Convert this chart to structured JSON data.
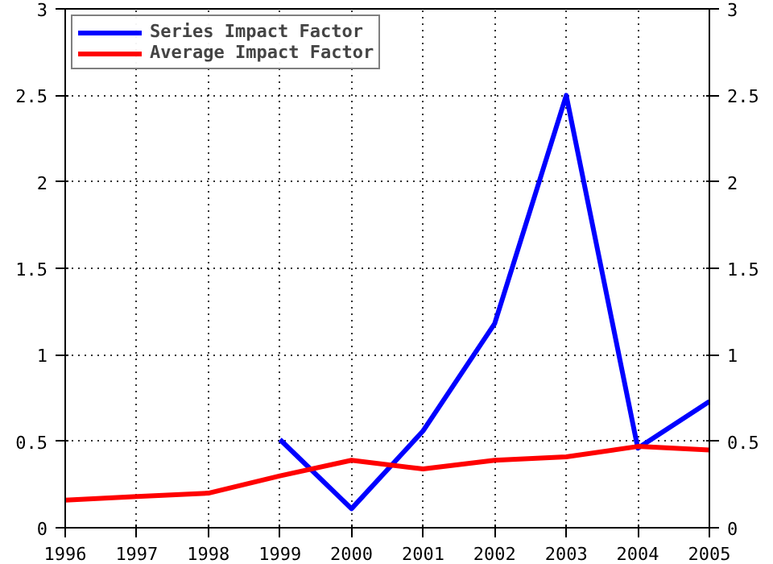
{
  "chart_data": {
    "type": "line",
    "x": [
      1996,
      1997,
      1998,
      1999,
      2000,
      2001,
      2002,
      2003,
      2004,
      2005
    ],
    "series": [
      {
        "name": "Series Impact Factor",
        "color": "#0000ff",
        "values": [
          null,
          null,
          null,
          0.51,
          0.11,
          0.56,
          1.18,
          2.5,
          0.46,
          0.73
        ]
      },
      {
        "name": "Average Impact Factor",
        "color": "#ff0000",
        "values": [
          0.16,
          0.18,
          0.2,
          0.3,
          0.39,
          0.34,
          0.39,
          0.41,
          0.47,
          0.45
        ]
      }
    ],
    "xlim": [
      1996,
      2005
    ],
    "xticks": [
      1996,
      1997,
      1998,
      1999,
      2000,
      2001,
      2002,
      2003,
      2004,
      2005
    ],
    "ylim": [
      0,
      3
    ],
    "yticks": [
      0,
      0.5,
      1,
      1.5,
      2,
      2.5,
      3
    ],
    "y2lim": [
      0,
      3
    ],
    "y2ticks": [
      0,
      0.5,
      1,
      1.5,
      2,
      2.5,
      3
    ],
    "grid": true,
    "legend": "top left",
    "line_style": "solid",
    "marker": "none"
  }
}
